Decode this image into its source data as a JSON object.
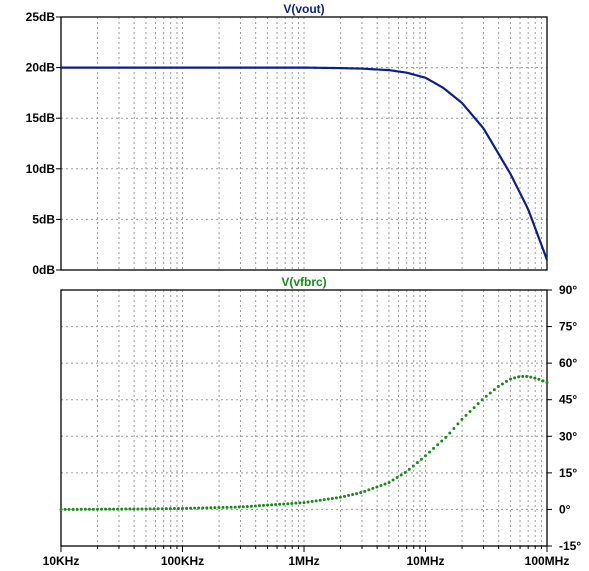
{
  "chart_data": [
    {
      "type": "line",
      "title": "V(vout)",
      "title_color": "#0a1f8f",
      "line_color": "#0a1f8f",
      "line_style": "solid",
      "xscale": "log",
      "xlim": [
        10000,
        100000000
      ],
      "ylim": [
        0,
        25
      ],
      "y_ticks": [
        {
          "value": 0,
          "label": "0dB"
        },
        {
          "value": 5,
          "label": "5dB"
        },
        {
          "value": 10,
          "label": "10dB"
        },
        {
          "value": 15,
          "label": "15dB"
        },
        {
          "value": 20,
          "label": "20dB"
        },
        {
          "value": 25,
          "label": "25dB"
        }
      ],
      "yaxis_side": "left",
      "grid": true,
      "series": [
        {
          "x": [
            10000,
            100000,
            1000000,
            2000000,
            3000000,
            5000000,
            7000000,
            10000000,
            14000000,
            20000000,
            30000000,
            50000000,
            70000000,
            100000000
          ],
          "values": [
            20,
            20,
            20,
            19.95,
            19.9,
            19.75,
            19.5,
            19.0,
            18.0,
            16.5,
            14.0,
            9.5,
            6.0,
            1.0
          ]
        }
      ]
    },
    {
      "type": "line",
      "title": "V(vfbrc)",
      "title_color": "#1a8a1a",
      "line_color": "#1a8a1a",
      "line_style": "dotted",
      "xscale": "log",
      "xlim": [
        10000,
        100000000
      ],
      "ylim": [
        -15,
        90
      ],
      "y_ticks": [
        {
          "value": -15,
          "label": "-15°"
        },
        {
          "value": 0,
          "label": "0°"
        },
        {
          "value": 15,
          "label": "15°"
        },
        {
          "value": 30,
          "label": "30°"
        },
        {
          "value": 45,
          "label": "45°"
        },
        {
          "value": 60,
          "label": "60°"
        },
        {
          "value": 75,
          "label": "75°"
        },
        {
          "value": 90,
          "label": "90°"
        }
      ],
      "yaxis_side": "right",
      "grid": true,
      "series": [
        {
          "x": [
            10000,
            50000,
            100000,
            300000,
            1000000,
            2000000,
            3000000,
            5000000,
            7000000,
            10000000,
            15000000,
            20000000,
            30000000,
            40000000,
            50000000,
            60000000,
            70000000,
            85000000,
            100000000
          ],
          "values": [
            0,
            0.2,
            0.4,
            1.0,
            2.8,
            5.0,
            7.0,
            11.0,
            15.5,
            22.0,
            30.0,
            37.0,
            45.5,
            50.5,
            53.5,
            54.5,
            54.5,
            53.5,
            52.0
          ]
        }
      ]
    }
  ],
  "x_ticks": [
    {
      "value": 10000,
      "label": "10KHz"
    },
    {
      "value": 100000,
      "label": "100KHz"
    },
    {
      "value": 1000000,
      "label": "1MHz"
    },
    {
      "value": 10000000,
      "label": "10MHz"
    },
    {
      "value": 100000000,
      "label": "100MHz"
    }
  ]
}
